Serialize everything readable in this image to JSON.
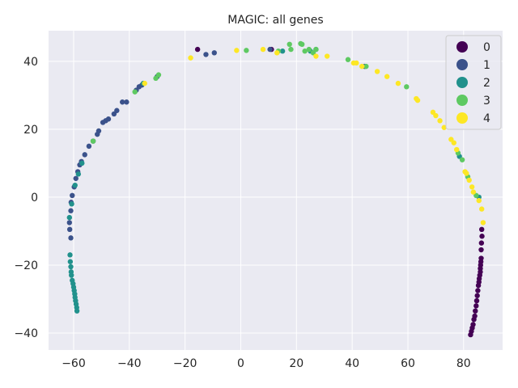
{
  "chart_data": {
    "type": "scatter",
    "title": "MAGIC: all genes",
    "xlabel": "",
    "ylabel": "",
    "xlim": [
      -69,
      94
    ],
    "ylim": [
      -45,
      49
    ],
    "xticks": [
      -60,
      -40,
      -20,
      0,
      20,
      40,
      60,
      80
    ],
    "yticks": [
      -40,
      -20,
      0,
      20,
      40
    ],
    "grid": true,
    "legend_position": "top-right",
    "colors": {
      "plot_background": "#eaeaf2",
      "grid": "#ffffff",
      "0": "#440154",
      "1": "#3b528b",
      "2": "#21918c",
      "3": "#5ec962",
      "4": "#fde725"
    },
    "series": [
      {
        "name": "0",
        "points": [
          [
            86.5,
            -9.5
          ],
          [
            86.6,
            -11.5
          ],
          [
            86.4,
            -13.5
          ],
          [
            86.3,
            -15.5
          ],
          [
            86.3,
            -18
          ],
          [
            86.2,
            -19
          ],
          [
            86.1,
            -20
          ],
          [
            86.0,
            -21
          ],
          [
            86.0,
            -22
          ],
          [
            85.8,
            -23
          ],
          [
            85.6,
            -24
          ],
          [
            85.5,
            -25
          ],
          [
            85.3,
            -26
          ],
          [
            85.1,
            -27.5
          ],
          [
            84.9,
            -29
          ],
          [
            84.7,
            -30.5
          ],
          [
            84.5,
            -32
          ],
          [
            84.2,
            -33.5
          ],
          [
            84.0,
            -35
          ],
          [
            83.7,
            -36
          ],
          [
            83.4,
            -37.5
          ],
          [
            83.1,
            -38.5
          ],
          [
            82.8,
            -39.5
          ],
          [
            82.5,
            -40.5
          ],
          [
            11.0,
            43.5
          ],
          [
            -15.5,
            43.5
          ]
        ]
      },
      {
        "name": "1",
        "points": [
          [
            -61.0,
            -12
          ],
          [
            -61.4,
            -9.5
          ],
          [
            -61.5,
            -7.5
          ],
          [
            -61.0,
            -4
          ],
          [
            -60.9,
            -1.5
          ],
          [
            -60.5,
            0.5
          ],
          [
            -59.8,
            3
          ],
          [
            -59.2,
            5.5
          ],
          [
            -58.5,
            7.5
          ],
          [
            -57.8,
            9.5
          ],
          [
            -57.2,
            10.5
          ],
          [
            -56.0,
            12.5
          ],
          [
            -54.5,
            15
          ],
          [
            -53.0,
            16.5
          ],
          [
            -51.5,
            18.5
          ],
          [
            -51.0,
            19.5
          ],
          [
            -49.5,
            22
          ],
          [
            -48.5,
            22.5
          ],
          [
            -47.5,
            23
          ],
          [
            -45.5,
            24.5
          ],
          [
            -44.5,
            25.5
          ],
          [
            -42.5,
            28
          ],
          [
            -41.0,
            28
          ],
          [
            -37.5,
            31.5
          ],
          [
            -36.5,
            32.5
          ],
          [
            -35.5,
            33
          ],
          [
            -30.0,
            35.5
          ],
          [
            -12.5,
            42
          ],
          [
            -9.5,
            42.5
          ],
          [
            10.5,
            43.5
          ],
          [
            44.5,
            38.5
          ]
        ]
      },
      {
        "name": "2",
        "points": [
          [
            -61.3,
            -17
          ],
          [
            -61.2,
            -19
          ],
          [
            -61.0,
            -20.5
          ],
          [
            -60.9,
            -22
          ],
          [
            -60.8,
            -23
          ],
          [
            -60.5,
            -24.5
          ],
          [
            -60.2,
            -25.5
          ],
          [
            -60.0,
            -26.5
          ],
          [
            -59.8,
            -27.5
          ],
          [
            -59.6,
            -28.5
          ],
          [
            -59.5,
            -29.5
          ],
          [
            -59.3,
            -30.5
          ],
          [
            -59.1,
            -31.5
          ],
          [
            -58.9,
            -32.5
          ],
          [
            -58.8,
            -33.5
          ],
          [
            -61.5,
            -6
          ],
          [
            -60.7,
            -2
          ],
          [
            -59.5,
            3.5
          ],
          [
            -58.3,
            6.8
          ],
          [
            -57.0,
            10
          ],
          [
            -35.0,
            33.5
          ],
          [
            15.0,
            43.0
          ],
          [
            25.0,
            43.0
          ],
          [
            27.0,
            43.5
          ],
          [
            78.5,
            12
          ],
          [
            85.5,
            0
          ]
        ]
      },
      {
        "name": "3",
        "points": [
          [
            -53.0,
            16.5
          ],
          [
            -38.0,
            31
          ],
          [
            -30.5,
            35
          ],
          [
            -29.5,
            36
          ],
          [
            2.0,
            43.2
          ],
          [
            13.5,
            43.0
          ],
          [
            17.5,
            45
          ],
          [
            18.0,
            43.5
          ],
          [
            21.5,
            45.2
          ],
          [
            22.0,
            45
          ],
          [
            23.0,
            43
          ],
          [
            24.5,
            43.5
          ],
          [
            26.0,
            42.5
          ],
          [
            27.0,
            43.5
          ],
          [
            38.5,
            40.5
          ],
          [
            45.0,
            38.5
          ],
          [
            59.5,
            32.5
          ],
          [
            78.0,
            13
          ],
          [
            79.5,
            11
          ],
          [
            81.5,
            6
          ],
          [
            84.5,
            0.5
          ]
        ]
      },
      {
        "name": "4",
        "points": [
          [
            -34.5,
            33.5
          ],
          [
            -18.0,
            41
          ],
          [
            -1.5,
            43.2
          ],
          [
            8.0,
            43.5
          ],
          [
            13.0,
            42.5
          ],
          [
            27.0,
            41.5
          ],
          [
            31.0,
            41.5
          ],
          [
            40.5,
            39.5
          ],
          [
            41.5,
            39.5
          ],
          [
            43.5,
            38.5
          ],
          [
            49.0,
            37
          ],
          [
            52.5,
            35.5
          ],
          [
            56.5,
            33.5
          ],
          [
            63.0,
            29
          ],
          [
            63.5,
            28.5
          ],
          [
            69.0,
            25
          ],
          [
            70.0,
            24
          ],
          [
            71.5,
            22.5
          ],
          [
            73.0,
            20.5
          ],
          [
            75.5,
            17
          ],
          [
            76.5,
            16
          ],
          [
            77.5,
            14
          ],
          [
            80.5,
            7.5
          ],
          [
            81.0,
            7
          ],
          [
            82.0,
            5
          ],
          [
            83.0,
            3
          ],
          [
            83.5,
            1.5
          ],
          [
            85.5,
            -1
          ],
          [
            86.5,
            -3.5
          ],
          [
            87.0,
            -7.5
          ]
        ]
      }
    ]
  }
}
